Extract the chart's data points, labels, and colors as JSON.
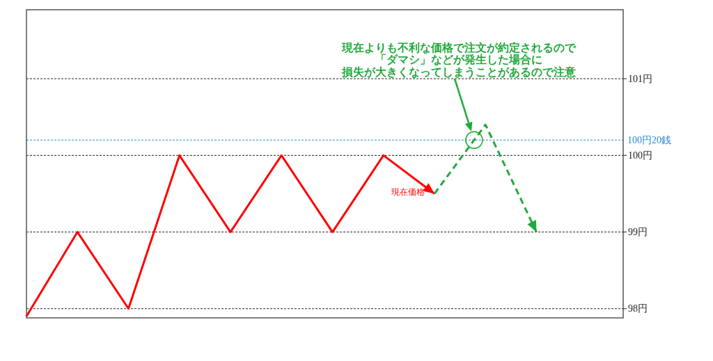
{
  "chart_data": {
    "type": "line",
    "categories": [
      null,
      null,
      null,
      null,
      null,
      null,
      null,
      null,
      null,
      null,
      null
    ],
    "series": [
      {
        "name": "現在価格",
        "color": "#ff0000",
        "line_style": "solid",
        "values": [
          97.9,
          99,
          98,
          100,
          99,
          100,
          99,
          100,
          99.5,
          null,
          null
        ]
      },
      {
        "color": "#22a83c",
        "line_style": "dashed",
        "values": [
          null,
          null,
          null,
          null,
          null,
          null,
          null,
          null,
          99.5,
          100.4,
          99
        ]
      }
    ],
    "ylim": [
      97.88,
      101.9
    ],
    "yticks": [
      {
        "value": 98,
        "label": "98円"
      },
      {
        "value": 99,
        "label": "99円"
      },
      {
        "value": 100,
        "label": "100円"
      },
      {
        "value": 101,
        "label": "101円"
      }
    ],
    "grid": "y",
    "tick_labels": "y",
    "ref_lines": [
      {
        "axis": "y",
        "value": 100.2,
        "label": "100円20銭",
        "color": "#2a8ad4",
        "line_style": "dashed"
      }
    ],
    "annotations": [
      "現在よりも不利な価格で注文が約定されるので",
      "「ダマシ」などが発生した場合に",
      "損失が大きくなってしまうことがあるので注意"
    ]
  }
}
